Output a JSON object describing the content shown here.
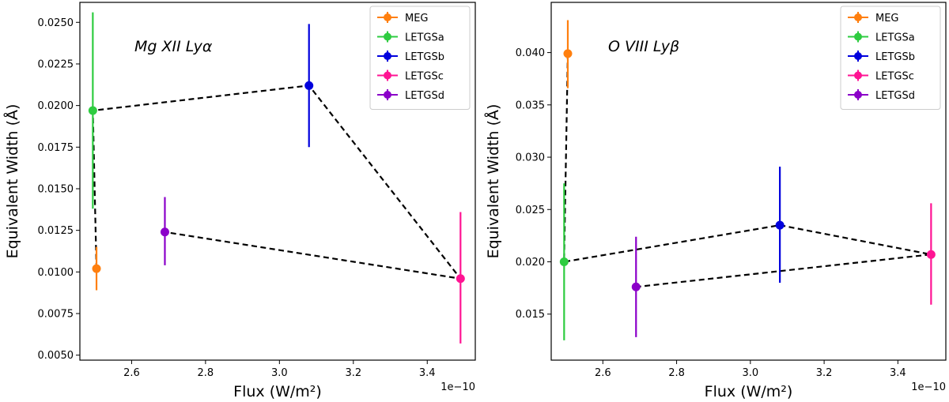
{
  "chart_data": [
    {
      "type": "scatter",
      "annotation": "Mg XII Lyα",
      "xlabel": "Flux (W/m²)",
      "ylabel": "Equivalent Width (Å)",
      "x_offset_label": "1e−10",
      "xlim": [
        2.46,
        3.53
      ],
      "ylim": [
        0.0047,
        0.0262
      ],
      "x_ticks": [
        2.6,
        2.8,
        3.0,
        3.2,
        3.4
      ],
      "x_tick_labels": [
        "2.6",
        "2.8",
        "3.0",
        "3.2",
        "3.4"
      ],
      "y_ticks": [
        0.005,
        0.0075,
        0.01,
        0.0125,
        0.015,
        0.0175,
        0.02,
        0.0225,
        0.025
      ],
      "y_tick_labels": [
        "0.0050",
        "0.0075",
        "0.0100",
        "0.0125",
        "0.0150",
        "0.0175",
        "0.0200",
        "0.0225",
        "0.0250"
      ],
      "legend_position": "top-right",
      "series": [
        {
          "name": "MEG",
          "color": "#ff7f0e",
          "x": 2.505,
          "y": 0.0102,
          "err_low": 0.0089,
          "err_high": 0.0115
        },
        {
          "name": "LETGSa",
          "color": "#2ecc40",
          "x": 2.495,
          "y": 0.0197,
          "err_low": 0.0138,
          "err_high": 0.0256
        },
        {
          "name": "LETGSb",
          "color": "#0000dd",
          "x": 3.08,
          "y": 0.0212,
          "err_low": 0.0175,
          "err_high": 0.0249
        },
        {
          "name": "LETGSc",
          "color": "#ff1493",
          "x": 3.49,
          "y": 0.0096,
          "err_low": 0.0057,
          "err_high": 0.0136
        },
        {
          "name": "LETGSd",
          "color": "#8b00c9",
          "x": 2.69,
          "y": 0.0124,
          "err_low": 0.0104,
          "err_high": 0.0145
        }
      ],
      "dashed_path": [
        {
          "x": 2.505,
          "y": 0.0102
        },
        {
          "x": 2.495,
          "y": 0.0197
        },
        {
          "x": 3.08,
          "y": 0.0212
        },
        {
          "x": 3.49,
          "y": 0.0096
        },
        {
          "x": 2.69,
          "y": 0.0124
        }
      ]
    },
    {
      "type": "scatter",
      "annotation": "O VIII Lyβ",
      "xlabel": "Flux (W/m²)",
      "ylabel": "Equivalent Width (Å)",
      "x_offset_label": "1e−10",
      "xlim": [
        2.46,
        3.53
      ],
      "ylim": [
        0.0106,
        0.0448
      ],
      "x_ticks": [
        2.6,
        2.8,
        3.0,
        3.2,
        3.4
      ],
      "x_tick_labels": [
        "2.6",
        "2.8",
        "3.0",
        "3.2",
        "3.4"
      ],
      "y_ticks": [
        0.015,
        0.02,
        0.025,
        0.03,
        0.035,
        0.04
      ],
      "y_tick_labels": [
        "0.015",
        "0.020",
        "0.025",
        "0.030",
        "0.035",
        "0.040"
      ],
      "legend_position": "top-right",
      "series": [
        {
          "name": "MEG",
          "color": "#ff7f0e",
          "x": 2.505,
          "y": 0.0399,
          "err_low": 0.0366,
          "err_high": 0.0431
        },
        {
          "name": "LETGSa",
          "color": "#2ecc40",
          "x": 2.495,
          "y": 0.02,
          "err_low": 0.0125,
          "err_high": 0.0275
        },
        {
          "name": "LETGSb",
          "color": "#0000dd",
          "x": 3.08,
          "y": 0.0235,
          "err_low": 0.018,
          "err_high": 0.0291
        },
        {
          "name": "LETGSc",
          "color": "#ff1493",
          "x": 3.49,
          "y": 0.0207,
          "err_low": 0.0159,
          "err_high": 0.0256
        },
        {
          "name": "LETGSd",
          "color": "#8b00c9",
          "x": 2.69,
          "y": 0.0176,
          "err_low": 0.0128,
          "err_high": 0.0224
        }
      ],
      "dashed_path": [
        {
          "x": 2.505,
          "y": 0.0399
        },
        {
          "x": 2.495,
          "y": 0.02
        },
        {
          "x": 3.08,
          "y": 0.0235
        },
        {
          "x": 3.49,
          "y": 0.0207
        },
        {
          "x": 2.69,
          "y": 0.0176
        }
      ]
    }
  ]
}
